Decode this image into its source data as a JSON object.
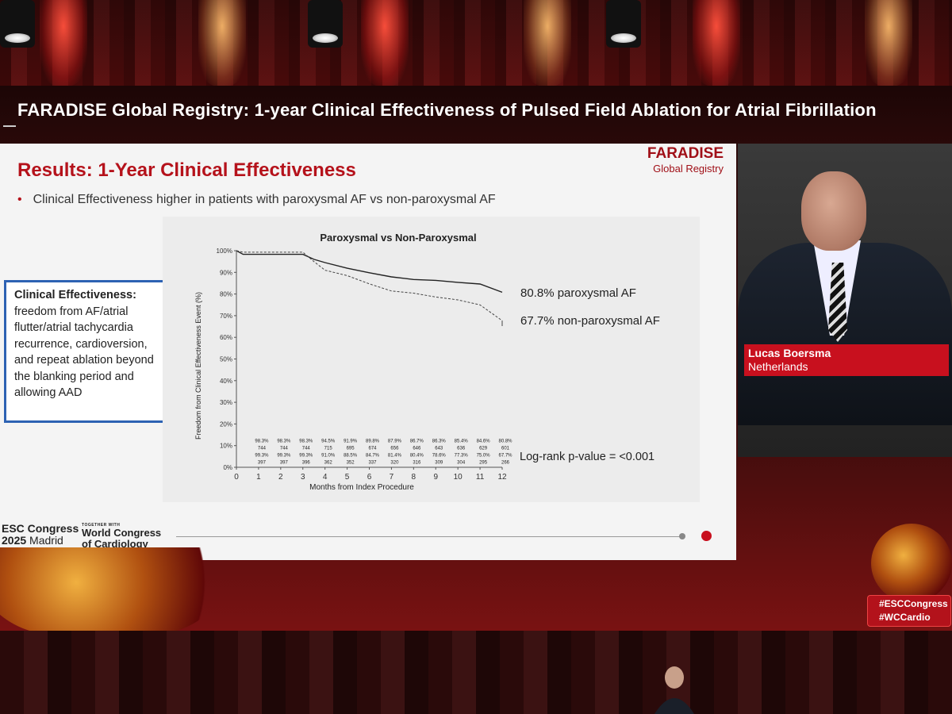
{
  "screen": {
    "title": "FARADISE Global Registry: 1-year Clinical Effectiveness of Pulsed Field Ablation for Atrial Fibrillation"
  },
  "slide": {
    "title": "Results: 1-Year Clinical Effectiveness",
    "brand_line1": "FARADISE",
    "brand_line2": "Global Registry",
    "bullet": "Clinical Effectiveness higher in patients with paroxysmal AF vs non-paroxysmal AF",
    "definition": {
      "heading": "Clinical Effectiveness:",
      "body": "freedom from AF/atrial flutter/atrial tachycardia recurrence, cardioversion, and repeat ablation beyond the blanking period and allowing AAD"
    },
    "legend_paroxysmal": "80.8% paroxysmal AF",
    "legend_non_paroxysmal": "67.7% non-paroxysmal AF",
    "logrank": "Log-rank p-value = <0.001",
    "footer_left_l1": "ESC Congress",
    "footer_left_l2a": "2025",
    "footer_left_l2b": "Madrid",
    "footer_tiny": "TOGETHER WITH",
    "footer_right_l1": "World Congress",
    "footer_right_l2": "of Cardiology",
    "accent": "#b5121b"
  },
  "chart_data": {
    "type": "line",
    "title": "Paroxysmal vs Non-Paroxysmal",
    "xlabel": "Months from Index Procedure",
    "ylabel": "Freedom from Clinical Effectiveness Event (%)",
    "x_ticks": [
      "0",
      "1",
      "2",
      "3",
      "4",
      "5",
      "6",
      "7",
      "8",
      "9",
      "10",
      "11",
      "12"
    ],
    "y_ticks": [
      "0%",
      "10%",
      "20%",
      "30%",
      "40%",
      "50%",
      "60%",
      "70%",
      "80%",
      "90%",
      "100%"
    ],
    "ylim": [
      0,
      100
    ],
    "xlim": [
      0,
      12
    ],
    "series": [
      {
        "name": "paroxysmal AF",
        "style": "solid",
        "x": [
          0,
          0.3,
          1,
          2,
          3,
          3.5,
          4,
          5,
          6,
          7,
          8,
          9,
          10,
          11,
          12
        ],
        "values": [
          100,
          98.3,
          98.3,
          98.3,
          98.3,
          96,
          94.5,
          91.9,
          89.8,
          87.9,
          86.7,
          86.3,
          85.4,
          84.6,
          80.8
        ]
      },
      {
        "name": "non-paroxysmal AF",
        "style": "dashed",
        "x": [
          0,
          0.3,
          1,
          2,
          3,
          3.5,
          4,
          5,
          6,
          7,
          8,
          9,
          10,
          11,
          12
        ],
        "values": [
          100,
          99.3,
          99.3,
          99.3,
          99.3,
          95,
          91.0,
          88.5,
          84.7,
          81.4,
          80.4,
          78.6,
          77.3,
          75.0,
          67.7
        ]
      }
    ],
    "risk_table": {
      "months": [
        "1",
        "2",
        "3",
        "4",
        "5",
        "6",
        "7",
        "8",
        "9",
        "10",
        "11",
        "12"
      ],
      "paroxysmal_pct": [
        "98.3%",
        "98.3%",
        "98.3%",
        "94.5%",
        "91.9%",
        "89.8%",
        "87.9%",
        "86.7%",
        "86.3%",
        "85.4%",
        "84.6%",
        "80.8%"
      ],
      "paroxysmal_n": [
        "744",
        "744",
        "744",
        "715",
        "695",
        "674",
        "656",
        "646",
        "643",
        "636",
        "629",
        "601"
      ],
      "non_paroxysmal_pct": [
        "99.3%",
        "99.3%",
        "99.3%",
        "91.0%",
        "88.5%",
        "84.7%",
        "81.4%",
        "80.4%",
        "78.6%",
        "77.3%",
        "75.0%",
        "67.7%"
      ],
      "non_paroxysmal_n": [
        "397",
        "397",
        "396",
        "362",
        "352",
        "337",
        "320",
        "316",
        "309",
        "304",
        "295",
        "266"
      ]
    }
  },
  "speaker": {
    "name": "Lucas Boersma",
    "country": "Netherlands"
  },
  "hashtags": {
    "tag1": "#ESCCongress",
    "tag2": "#WCCardio"
  }
}
